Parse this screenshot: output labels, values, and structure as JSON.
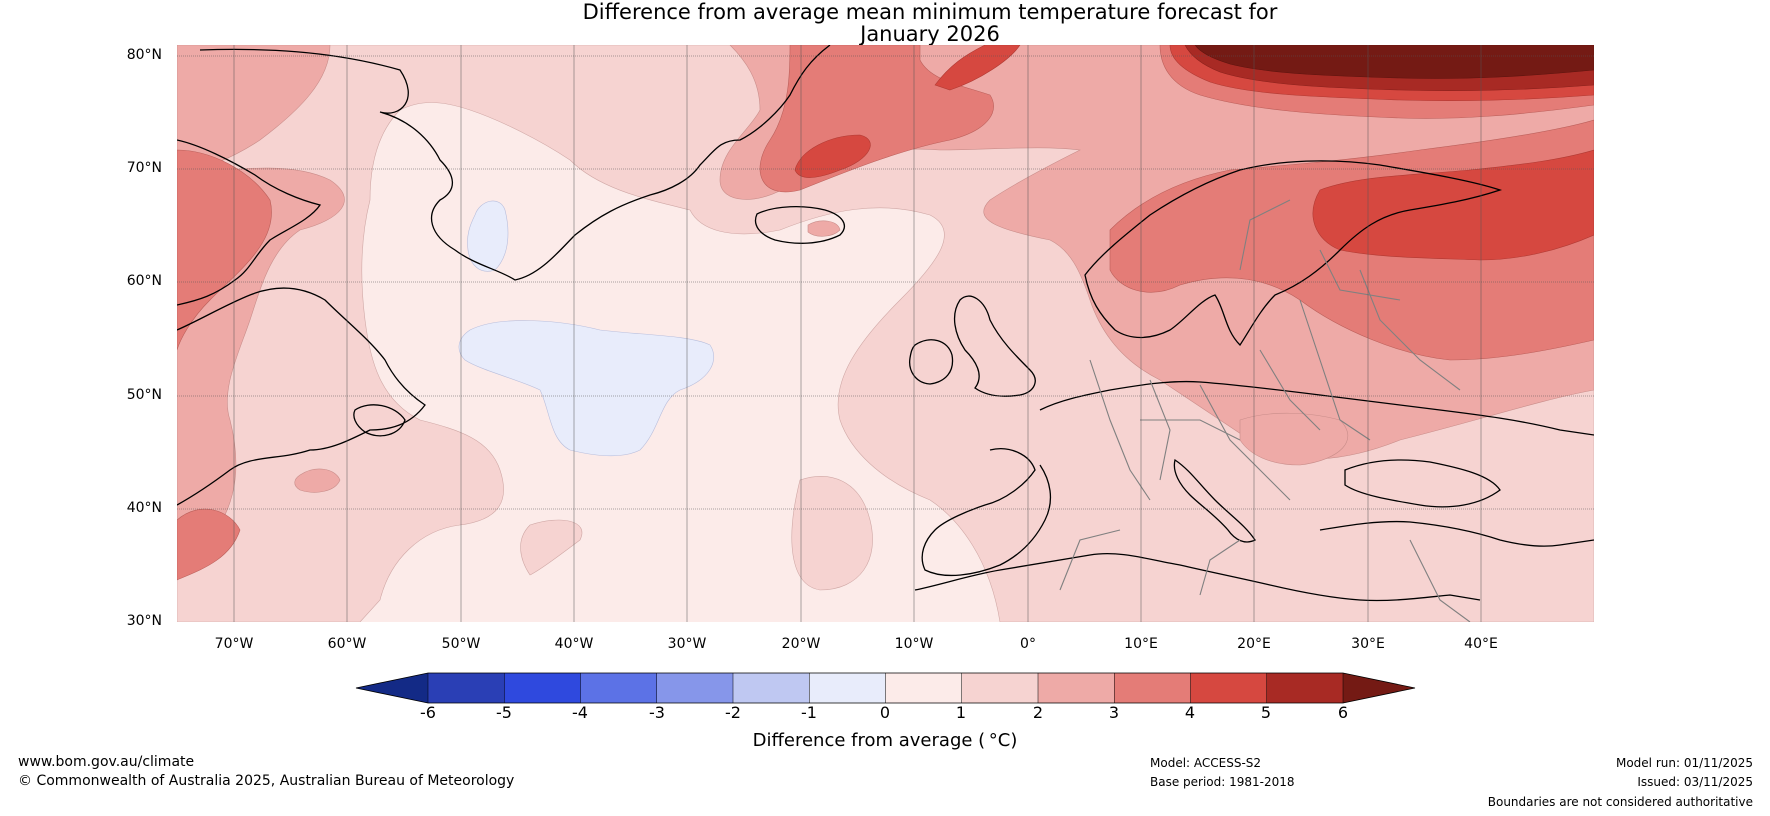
{
  "title": {
    "line1": "Difference from average mean minimum temperature forecast for",
    "line2": "January 2026"
  },
  "map": {
    "lat_labels": [
      "80°N",
      "70°N",
      "60°N",
      "50°N",
      "40°N",
      "30°N"
    ],
    "lon_labels": [
      "70°W",
      "60°W",
      "50°W",
      "40°W",
      "30°W",
      "20°W",
      "10°W",
      "0°",
      "10°E",
      "20°E",
      "30°E",
      "40°E"
    ],
    "extent": {
      "lon_min": -75,
      "lon_max": 50,
      "lat_min": 30,
      "lat_max": 81
    }
  },
  "colorbar": {
    "label": "Difference from average ( °C)",
    "ticks": [
      "-6",
      "-5",
      "-4",
      "-3",
      "-2",
      "-1",
      "0",
      "1",
      "2",
      "3",
      "4",
      "5",
      "6"
    ],
    "colors": [
      "#132a86",
      "#2a3fb5",
      "#2f49de",
      "#5c72e6",
      "#8696ea",
      "#bfc8f2",
      "#e8ecfb",
      "#fcebe9",
      "#f6d3d1",
      "#eeaaa7",
      "#e47c77",
      "#d64840",
      "#a82a24",
      "#741a14"
    ]
  },
  "footer": {
    "website": "www.bom.gov.au/climate",
    "copyright": "© Commonwealth of Australia 2025, Australian Bureau of Meteorology",
    "model": "Model: ACCESS-S2",
    "base_period": "Base period: 1981-2018",
    "model_run": "Model run: 01/11/2025",
    "issued": "Issued: 03/11/2025",
    "disclaimer": "Boundaries are not considered authoritative"
  }
}
